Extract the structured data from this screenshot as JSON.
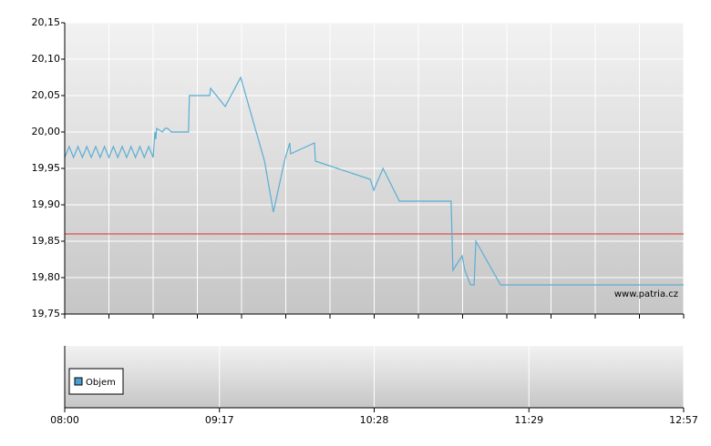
{
  "chart_data": {
    "type": "line",
    "xlim": [
      0,
      14
    ],
    "ylim": [
      19.75,
      20.15
    ],
    "yticks": [
      {
        "value": 19.75,
        "label": "19,75"
      },
      {
        "value": 19.8,
        "label": "19,80"
      },
      {
        "value": 19.85,
        "label": "19,85"
      },
      {
        "value": 19.9,
        "label": "19,90"
      },
      {
        "value": 19.95,
        "label": "19,95"
      },
      {
        "value": 20.0,
        "label": "20,00"
      },
      {
        "value": 20.05,
        "label": "20,05"
      },
      {
        "value": 20.1,
        "label": "20,10"
      },
      {
        "value": 20.15,
        "label": "20,15"
      }
    ],
    "xgrid": [
      0,
      1,
      2,
      3,
      4,
      5,
      6,
      7,
      8,
      9,
      10,
      11,
      12,
      13,
      14
    ],
    "xticks": [
      {
        "value": 0,
        "label": "08:00"
      },
      {
        "value": 3.5,
        "label": "09:17"
      },
      {
        "value": 7,
        "label": "10:28"
      },
      {
        "value": 10.5,
        "label": "11:29"
      },
      {
        "value": 14,
        "label": "12:57"
      }
    ],
    "grid": true,
    "reference_line": {
      "value": 19.86,
      "color": "#e03030"
    },
    "watermark": "www.patria.cz",
    "series": [
      {
        "color": "#5aaed4",
        "x": [
          0.0,
          0.1,
          0.2,
          0.3,
          0.4,
          0.5,
          0.6,
          0.7,
          0.8,
          0.9,
          1.0,
          1.1,
          1.2,
          1.3,
          1.4,
          1.5,
          1.6,
          1.7,
          1.8,
          1.9,
          2.0,
          2.04,
          2.06,
          2.08,
          2.21,
          2.27,
          2.33,
          2.41,
          2.43,
          2.8,
          2.82,
          3.28,
          3.3,
          3.63,
          3.98,
          4.52,
          4.72,
          4.97,
          5.09,
          5.11,
          5.65,
          5.67,
          6.91,
          6.99,
          7.2,
          7.57,
          8.74,
          8.78,
          8.99,
          9.05,
          9.18,
          9.26,
          9.3,
          9.86,
          14.0
        ],
        "values": [
          19.965,
          19.98,
          19.965,
          19.98,
          19.965,
          19.98,
          19.965,
          19.98,
          19.965,
          19.98,
          19.965,
          19.98,
          19.965,
          19.98,
          19.965,
          19.98,
          19.965,
          19.98,
          19.965,
          19.98,
          19.965,
          20.0,
          19.99,
          20.005,
          20.0,
          20.005,
          20.005,
          20.0,
          20.0,
          20.0,
          20.05,
          20.05,
          20.06,
          20.035,
          20.075,
          19.96,
          19.89,
          19.96,
          19.985,
          19.97,
          19.985,
          19.96,
          19.935,
          19.92,
          19.95,
          19.905,
          19.905,
          19.81,
          19.83,
          19.81,
          19.79,
          19.79,
          19.85,
          19.79,
          19.79
        ]
      }
    ],
    "volume_panel": {
      "legend": "Objem",
      "color": "#4a9fd0"
    }
  }
}
